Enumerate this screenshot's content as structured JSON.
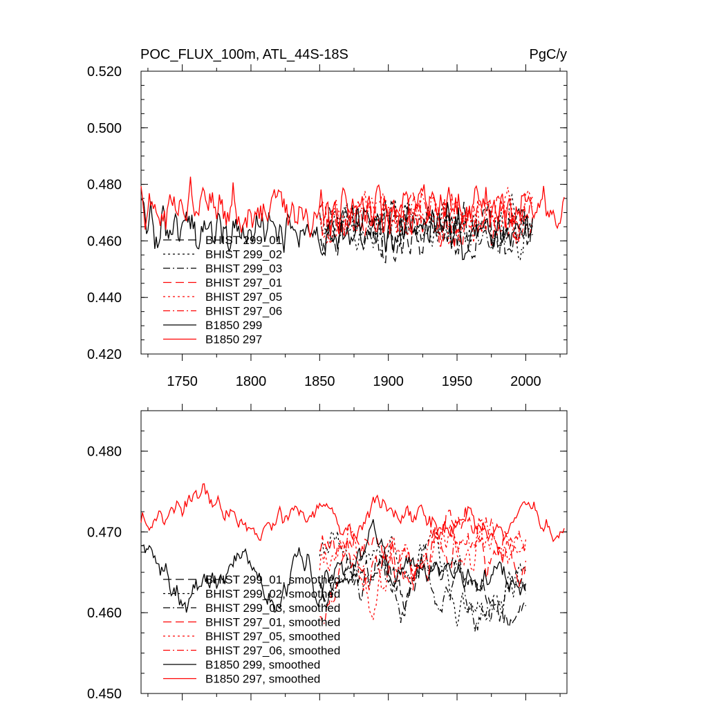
{
  "chart_data": [
    {
      "type": "line",
      "title": "POC_FLUX_100m, ATL_44S-18S",
      "units": "PgC/y",
      "xlim": [
        1720,
        2030
      ],
      "ylim": [
        0.42,
        0.52
      ],
      "xticks": [
        1750,
        1800,
        1850,
        1900,
        1950,
        2000
      ],
      "yticks": [
        "0.420",
        "0.440",
        "0.460",
        "0.480",
        "0.500",
        "0.520"
      ],
      "series": [
        {
          "name": "BHIST 299_01",
          "color": "#000000",
          "dash": "long",
          "start": 1850,
          "end": 2005,
          "base": 0.463,
          "amp": 0.013
        },
        {
          "name": "BHIST 299_02",
          "color": "#000000",
          "dash": "dot",
          "start": 1850,
          "end": 2005,
          "base": 0.464,
          "amp": 0.013
        },
        {
          "name": "BHIST 299_03",
          "color": "#000000",
          "dash": "dashdot",
          "start": 1850,
          "end": 2005,
          "base": 0.464,
          "amp": 0.013
        },
        {
          "name": "BHIST 297_01",
          "color": "#ff0000",
          "dash": "long",
          "start": 1850,
          "end": 2005,
          "base": 0.468,
          "amp": 0.013
        },
        {
          "name": "BHIST 297_05",
          "color": "#ff0000",
          "dash": "dot",
          "start": 1850,
          "end": 2005,
          "base": 0.468,
          "amp": 0.013
        },
        {
          "name": "BHIST 297_06",
          "color": "#ff0000",
          "dash": "dashdot",
          "start": 1850,
          "end": 2005,
          "base": 0.468,
          "amp": 0.013
        },
        {
          "name": "B1850 299",
          "color": "#000000",
          "dash": "solid",
          "start": 1720,
          "end": 2005,
          "base": 0.464,
          "amp": 0.013
        },
        {
          "name": "B1850 297",
          "color": "#ff0000",
          "dash": "solid",
          "start": 1720,
          "end": 2028,
          "base": 0.471,
          "amp": 0.013
        }
      ]
    },
    {
      "type": "line",
      "xlim": [
        1720,
        2030
      ],
      "ylim": [
        0.45,
        0.485
      ],
      "xticks": [
        1750,
        1800,
        1850,
        1900,
        1950,
        2000
      ],
      "yticks": [
        "0.450",
        "0.460",
        "0.470",
        "0.480"
      ],
      "series": [
        {
          "name": "BHIST 299_01, smoothed",
          "color": "#000000",
          "dash": "long",
          "start": 1850,
          "end": 2000,
          "base": 0.464,
          "amp": 0.007
        },
        {
          "name": "BHIST 299_02, smoothed",
          "color": "#000000",
          "dash": "dot",
          "start": 1850,
          "end": 2000,
          "base": 0.465,
          "amp": 0.007
        },
        {
          "name": "BHIST 299_03, smoothed",
          "color": "#000000",
          "dash": "dashdot",
          "start": 1850,
          "end": 2000,
          "base": 0.463,
          "amp": 0.007
        },
        {
          "name": "BHIST 297_01, smoothed",
          "color": "#ff0000",
          "dash": "long",
          "start": 1850,
          "end": 2000,
          "base": 0.468,
          "amp": 0.008
        },
        {
          "name": "BHIST 297_05, smoothed",
          "color": "#ff0000",
          "dash": "dot",
          "start": 1850,
          "end": 2000,
          "base": 0.467,
          "amp": 0.008
        },
        {
          "name": "BHIST 297_06, smoothed",
          "color": "#ff0000",
          "dash": "dashdot",
          "start": 1850,
          "end": 2000,
          "base": 0.467,
          "amp": 0.008
        },
        {
          "name": "B1850 299, smoothed",
          "color": "#000000",
          "dash": "solid",
          "start": 1720,
          "end": 2000,
          "base": 0.465,
          "amp": 0.006
        },
        {
          "name": "B1850 297, smoothed",
          "color": "#ff0000",
          "dash": "solid",
          "start": 1720,
          "end": 2028,
          "base": 0.472,
          "amp": 0.005
        }
      ]
    }
  ]
}
